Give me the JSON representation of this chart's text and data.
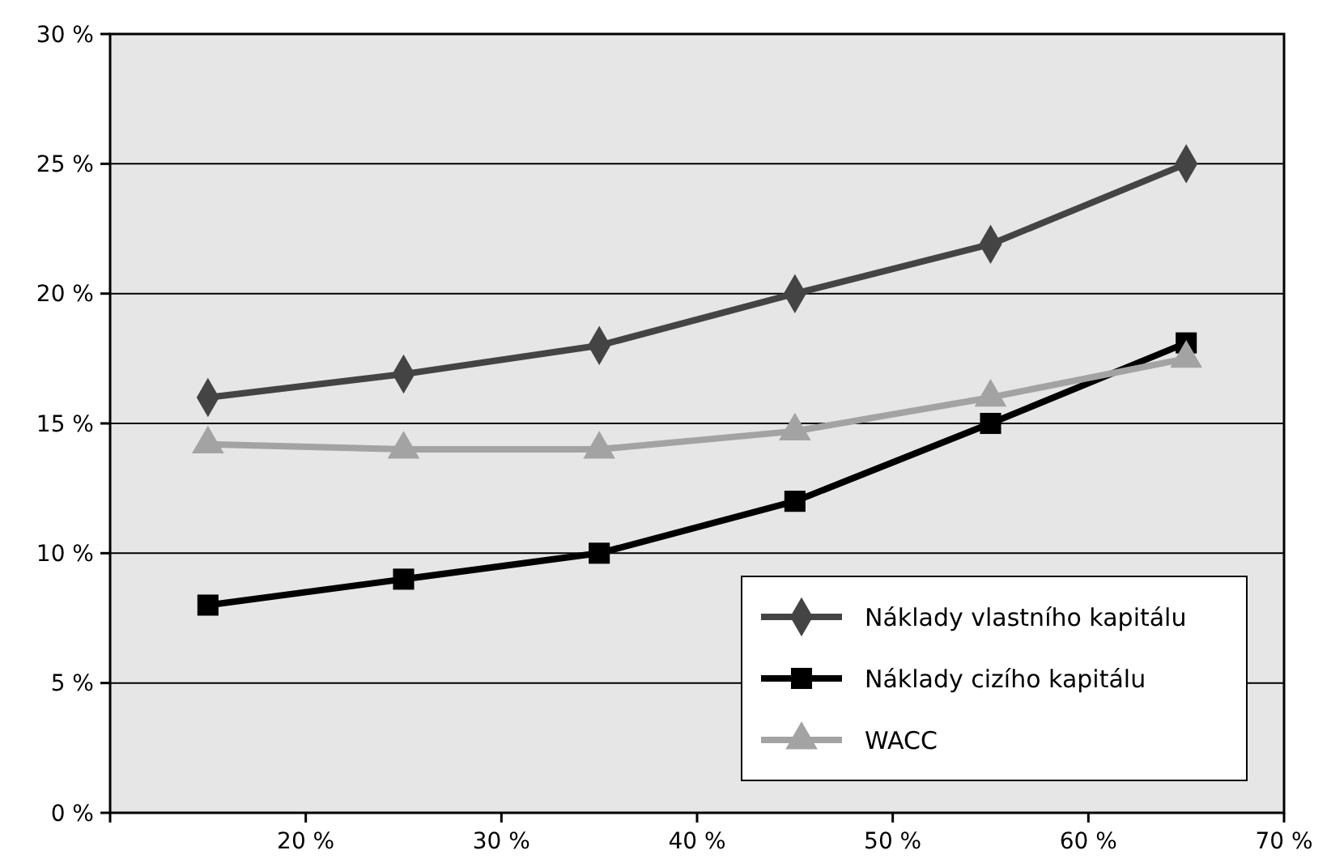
{
  "chart_data": {
    "type": "line",
    "x": [
      15,
      25,
      35,
      45,
      55,
      65
    ],
    "series": [
      {
        "name": "Náklady vlastního kapitálu",
        "color": "#444444",
        "marker": "diamond",
        "values": [
          16,
          16.9,
          18,
          20,
          21.9,
          25
        ]
      },
      {
        "name": "Náklady cizího kapitálu",
        "color": "#000000",
        "marker": "square",
        "values": [
          8,
          9,
          10,
          12,
          15,
          18.1
        ]
      },
      {
        "name": "WACC",
        "color": "#a3a3a3",
        "marker": "triangle",
        "values": [
          14.2,
          14,
          14,
          14.7,
          16,
          17.5
        ]
      }
    ],
    "xlim": [
      10,
      70
    ],
    "xticks": [
      {
        "value": 10,
        "label": null
      },
      {
        "value": 20,
        "label": "20 %"
      },
      {
        "value": 30,
        "label": "30 %"
      },
      {
        "value": 40,
        "label": "40 %"
      },
      {
        "value": 50,
        "label": "50 %"
      },
      {
        "value": 60,
        "label": "60 %"
      },
      {
        "value": 70,
        "label": "70 %"
      }
    ],
    "ylim": [
      0,
      30
    ],
    "yticks": [
      {
        "value": 0,
        "label": "0 %"
      },
      {
        "value": 5,
        "label": "5 %"
      },
      {
        "value": 10,
        "label": "10 %"
      },
      {
        "value": 15,
        "label": "15 %"
      },
      {
        "value": 20,
        "label": "20 %"
      },
      {
        "value": 25,
        "label": "25 %"
      },
      {
        "value": 30,
        "label": "30 %"
      }
    ],
    "grid": "y",
    "legend": "bottom right"
  }
}
